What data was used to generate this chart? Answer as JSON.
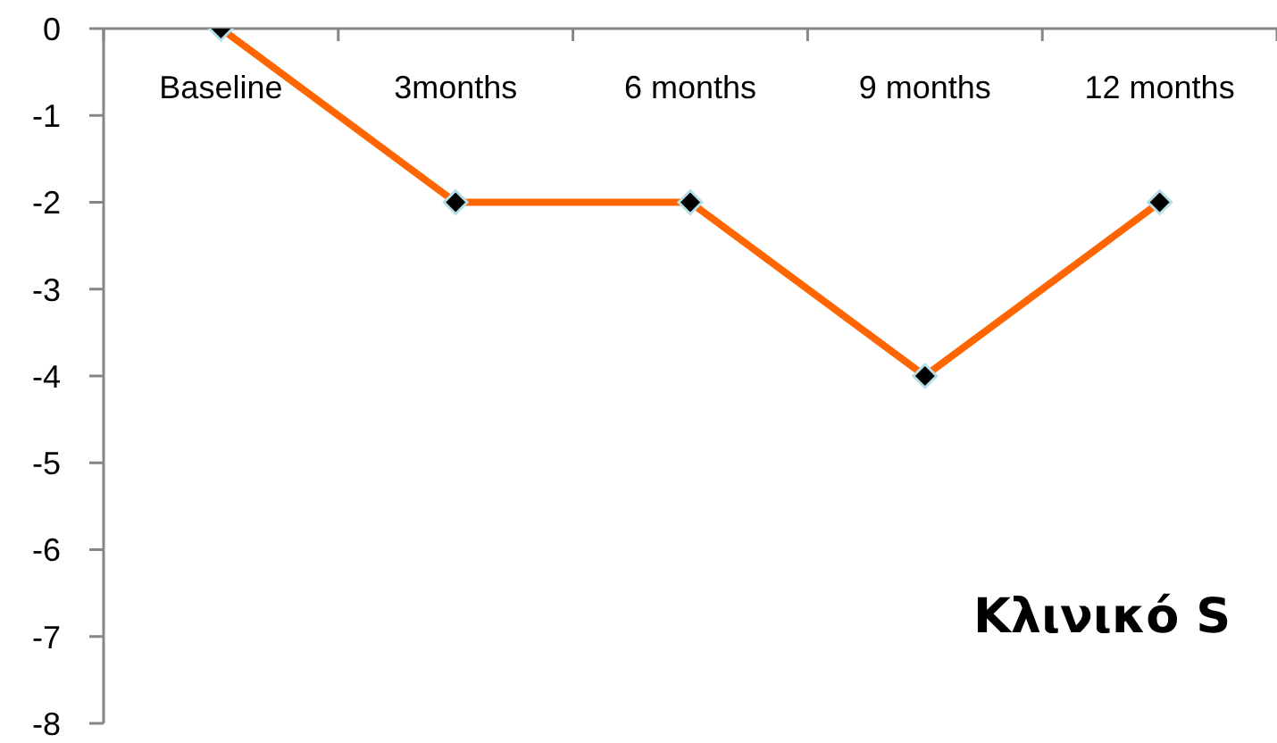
{
  "chart_data": {
    "type": "line",
    "categories": [
      "Baseline",
      "3months",
      "6 months",
      "9 months",
      "12 months"
    ],
    "series": [
      {
        "color": "#ff6600",
        "values": [
          0,
          -2,
          -2,
          -4,
          -2
        ]
      }
    ],
    "ylim": [
      -8,
      0
    ],
    "yticks": [
      0,
      -1,
      -2,
      -3,
      -4,
      -5,
      -6,
      -7,
      -8
    ],
    "marker": "diamond",
    "line_style": "solid",
    "annotations": [
      "Κλινικό S"
    ]
  }
}
